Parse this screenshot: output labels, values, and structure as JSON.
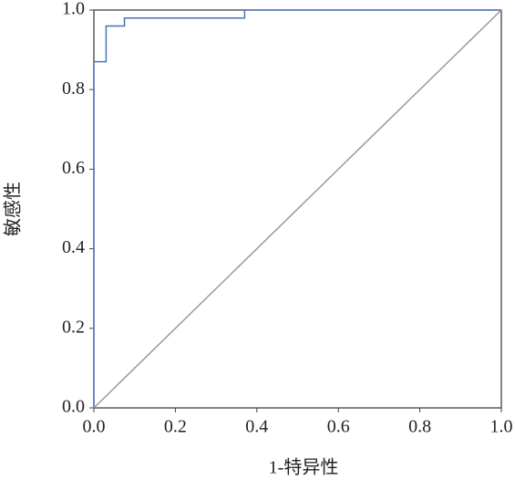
{
  "chart_data": {
    "type": "line",
    "xlabel": "1-特异性",
    "ylabel": "敏感性",
    "xlim": [
      0,
      1
    ],
    "ylim": [
      0,
      1
    ],
    "xticks": [
      {
        "value": 0,
        "label": "0.0"
      },
      0.2,
      0.4,
      0.6,
      0.8,
      {
        "value": 1,
        "label": "1.0"
      }
    ],
    "yticks": [
      {
        "value": 0,
        "label": "0.0"
      },
      0.2,
      0.4,
      0.6,
      0.8,
      {
        "value": 1,
        "label": "1.0"
      }
    ],
    "series": [
      {
        "color": "#4a72b8",
        "x": [
          0,
          0,
          0.03,
          0.03,
          0.075,
          0.075,
          0.37,
          0.37,
          1
        ],
        "values": [
          0,
          0.87,
          0.87,
          0.96,
          0.96,
          0.98,
          0.98,
          1,
          1
        ]
      },
      {
        "color": "#999999",
        "x": [
          0,
          1
        ],
        "values": [
          0,
          1
        ]
      }
    ]
  }
}
